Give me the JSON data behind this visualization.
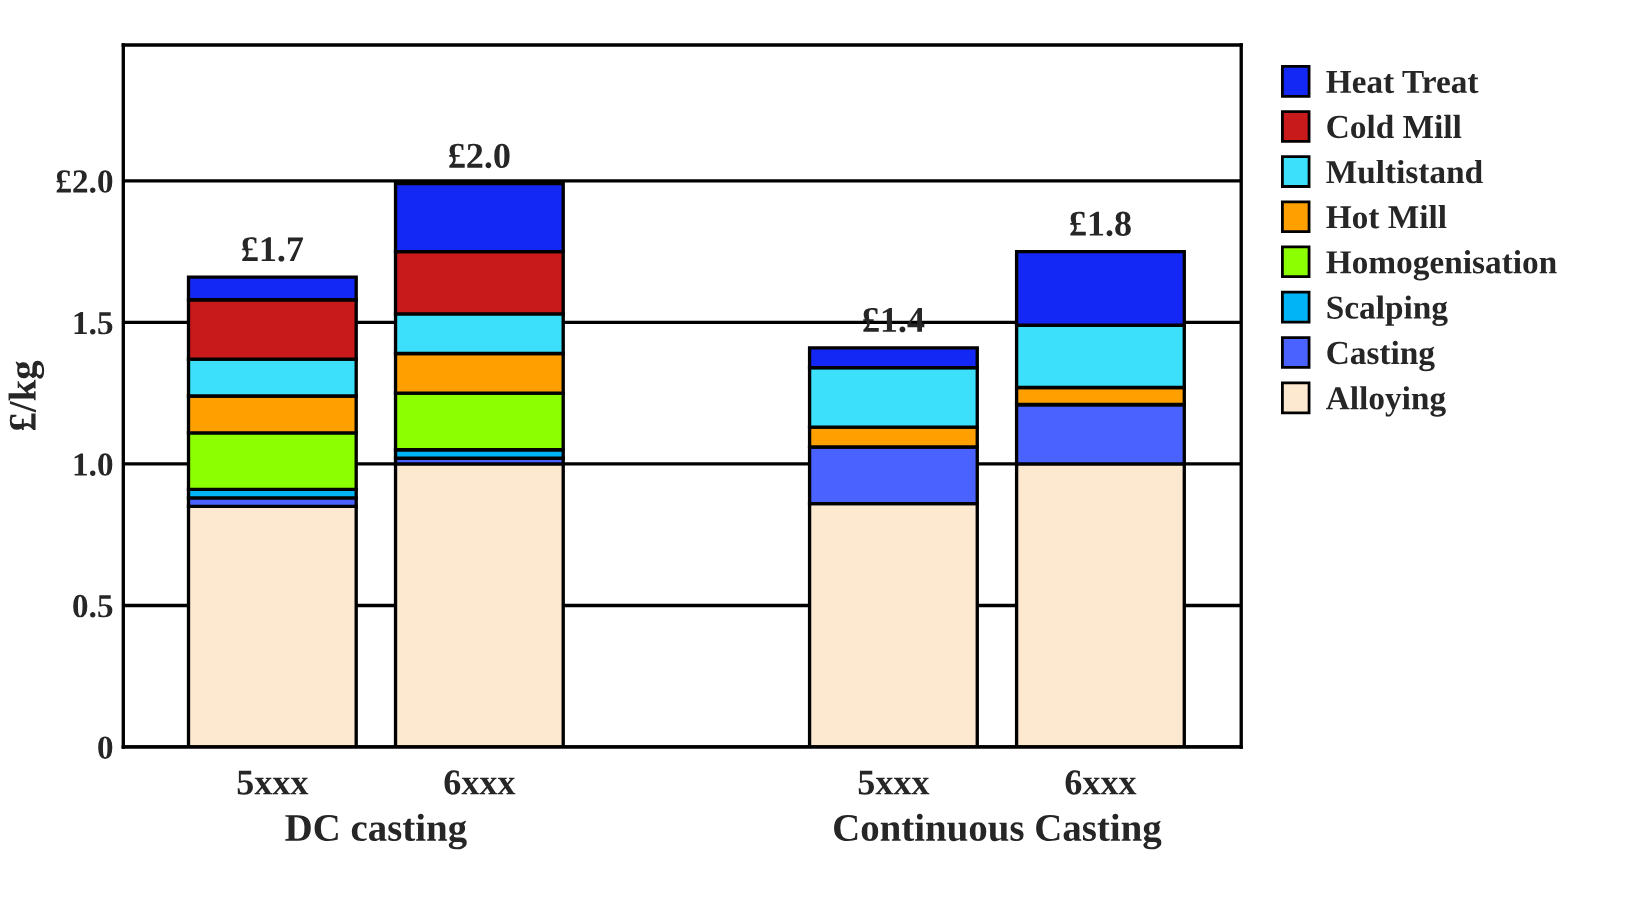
{
  "chart_data": {
    "type": "bar",
    "stacked": true,
    "ylabel": "£/kg",
    "categories": [
      "5xxx",
      "6xxx",
      null,
      "5xxx",
      "6xxx"
    ],
    "series": [
      {
        "name": "Alloying",
        "color": "#fde8d0",
        "values": [
          0.85,
          1.0,
          null,
          0.86,
          1.0
        ]
      },
      {
        "name": "Casting",
        "color": "#4a62ff",
        "values": [
          0.03,
          0.02,
          null,
          0.2,
          0.21
        ]
      },
      {
        "name": "Scalping",
        "color": "#00b4f5",
        "values": [
          0.03,
          0.03,
          null,
          0,
          0
        ]
      },
      {
        "name": "Homogenisation",
        "color": "#8cff00",
        "values": [
          0.2,
          0.2,
          null,
          0,
          0
        ]
      },
      {
        "name": "Hot Mill",
        "color": "#ffa000",
        "values": [
          0.13,
          0.14,
          null,
          0.07,
          0.06
        ]
      },
      {
        "name": "Multistand",
        "color": "#3ce0fa",
        "values": [
          0.13,
          0.14,
          null,
          0.21,
          0.22
        ]
      },
      {
        "name": "Cold Mill",
        "color": "#c81a1a",
        "values": [
          0.21,
          0.22,
          null,
          0,
          0
        ]
      },
      {
        "name": "Heat Treat",
        "color": "#1428f5",
        "values": [
          0.08,
          0.24,
          null,
          0.07,
          0.26
        ]
      }
    ],
    "totals": [
      "£1.7",
      "£2.0",
      null,
      "£1.4",
      "£1.8"
    ],
    "ylim": [
      0,
      2.48
    ],
    "yticks": [
      {
        "value": 0,
        "label": "0"
      },
      0.5,
      {
        "value": 1,
        "label": "1.0"
      },
      1.5,
      {
        "value": 2,
        "label": "£2.0"
      }
    ],
    "grid": "y",
    "legend": "right",
    "annotations": [
      "DC casting",
      "Continuous Casting"
    ]
  }
}
